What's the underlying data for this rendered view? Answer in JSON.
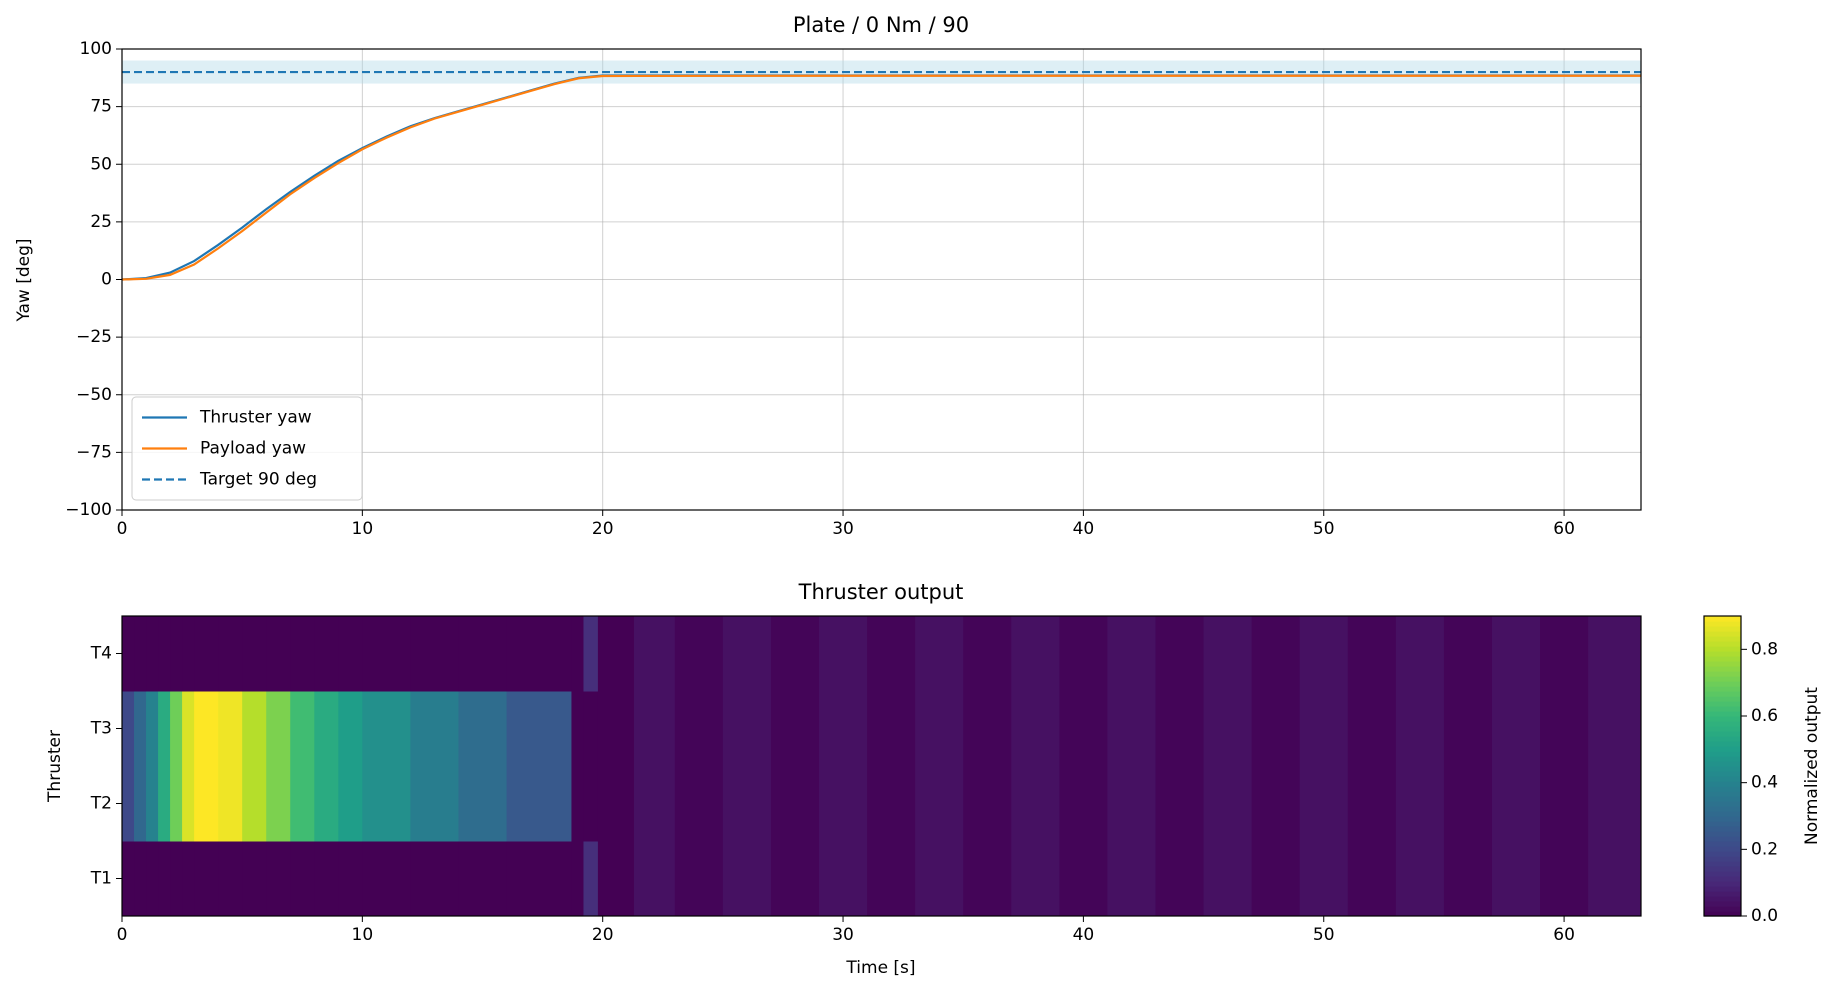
{
  "chart_data": [
    {
      "type": "line",
      "title": "Plate / 0 Nm / 90",
      "ylabel": "Yaw [deg]",
      "xlim": [
        0,
        63.2
      ],
      "ylim": [
        -100,
        100
      ],
      "xticks": [
        0,
        10,
        20,
        30,
        40,
        50,
        60
      ],
      "yticks": [
        {
          "value": -100,
          "label": "−100"
        },
        {
          "value": -75,
          "label": "−75"
        },
        {
          "value": -50,
          "label": "−50"
        },
        {
          "value": -25,
          "label": "−25"
        },
        0,
        25,
        50,
        75,
        100
      ],
      "grid": true,
      "legend": "lower left",
      "target_band": [
        85,
        95
      ],
      "band_color": "#add8e6",
      "x": [
        0,
        1,
        2,
        3,
        4,
        5,
        6,
        7,
        8,
        9,
        10,
        11,
        12,
        13,
        14,
        15,
        16,
        17,
        18,
        19,
        20,
        30,
        40,
        50,
        60,
        63.2
      ],
      "series": [
        {
          "name": "Thruster yaw",
          "color": "#1f77b4",
          "dash": false,
          "values": [
            0,
            0.6,
            3,
            8,
            15,
            22.5,
            30.5,
            38,
            45,
            51.5,
            57,
            62,
            66.5,
            70,
            73,
            76,
            79,
            82,
            85,
            87.5,
            88.5,
            88.5,
            88.5,
            88.5,
            88.5,
            88.5
          ]
        },
        {
          "name": "Payload yaw",
          "color": "#ff7f0e",
          "dash": false,
          "values": [
            0,
            0.3,
            2,
            6.5,
            13.5,
            21,
            29,
            37,
            44,
            50.5,
            56.5,
            61.5,
            66,
            69.8,
            72.8,
            75.8,
            78.8,
            81.8,
            84.8,
            87.3,
            88.3,
            88.4,
            88.4,
            88.4,
            88.4,
            88.4
          ]
        },
        {
          "name": "Target 90 deg",
          "color": "#1f77b4",
          "dash": true,
          "values": [
            90,
            90,
            90,
            90,
            90,
            90,
            90,
            90,
            90,
            90,
            90,
            90,
            90,
            90,
            90,
            90,
            90,
            90,
            90,
            90,
            90,
            90,
            90,
            90,
            90,
            90
          ]
        }
      ]
    },
    {
      "type": "heatmap",
      "title": "Thruster output",
      "xlabel": "Time [s]",
      "ylabel": "Thruster",
      "colormap": "viridis",
      "clim": [
        0,
        0.9
      ],
      "colorbar_label": "Normalized output",
      "colorbar_ticks": [
        {
          "value": 0,
          "label": "0.0"
        },
        {
          "value": 0.2,
          "label": "0.2"
        },
        {
          "value": 0.4,
          "label": "0.4"
        },
        {
          "value": 0.6,
          "label": "0.6"
        },
        {
          "value": 0.8,
          "label": "0.8"
        }
      ],
      "xlim": [
        0,
        63.2
      ],
      "xticks": [
        0,
        10,
        20,
        30,
        40,
        50,
        60
      ],
      "categories": [
        "T1",
        "T2",
        "T3",
        "T4"
      ],
      "bins": [
        0,
        0.5,
        1,
        1.5,
        2,
        2.5,
        3,
        4,
        5,
        6,
        7,
        8,
        9,
        10,
        12,
        14,
        16,
        18.7,
        19.2,
        19.8,
        21.3,
        23,
        25,
        27,
        29,
        31,
        33,
        35,
        37,
        39,
        41,
        43,
        45,
        47,
        49,
        51,
        53,
        55,
        57,
        59,
        61,
        63.2
      ],
      "values": [
        [
          0,
          0,
          0,
          0,
          0,
          0,
          0,
          0,
          0,
          0,
          0,
          0,
          0,
          0,
          0,
          0,
          0,
          0,
          0.12,
          0,
          0.04,
          0.01,
          0.04,
          0.01,
          0.04,
          0.01,
          0.04,
          0.01,
          0.04,
          0.01,
          0.04,
          0.01,
          0.04,
          0.01,
          0.04,
          0.01,
          0.04,
          0.01,
          0.04,
          0.01,
          0.04
        ],
        [
          0.2,
          0.3,
          0.4,
          0.55,
          0.7,
          0.85,
          0.9,
          0.88,
          0.8,
          0.72,
          0.62,
          0.55,
          0.5,
          0.45,
          0.38,
          0.32,
          0.25,
          0,
          0,
          0,
          0.04,
          0.01,
          0.04,
          0.01,
          0.04,
          0.01,
          0.04,
          0.01,
          0.04,
          0.01,
          0.04,
          0.01,
          0.04,
          0.01,
          0.04,
          0.01,
          0.04,
          0.01,
          0.04,
          0.01,
          0.04
        ],
        [
          0.2,
          0.3,
          0.4,
          0.55,
          0.7,
          0.85,
          0.9,
          0.88,
          0.8,
          0.72,
          0.62,
          0.55,
          0.5,
          0.45,
          0.38,
          0.32,
          0.25,
          0,
          0,
          0,
          0.04,
          0.01,
          0.04,
          0.01,
          0.04,
          0.01,
          0.04,
          0.01,
          0.04,
          0.01,
          0.04,
          0.01,
          0.04,
          0.01,
          0.04,
          0.01,
          0.04,
          0.01,
          0.04,
          0.01,
          0.04
        ],
        [
          0,
          0,
          0,
          0,
          0,
          0,
          0,
          0,
          0,
          0,
          0,
          0,
          0,
          0,
          0,
          0,
          0,
          0,
          0.12,
          0,
          0.04,
          0.01,
          0.04,
          0.01,
          0.04,
          0.01,
          0.04,
          0.01,
          0.04,
          0.01,
          0.04,
          0.01,
          0.04,
          0.01,
          0.04,
          0.01,
          0.04,
          0.01,
          0.04,
          0.01,
          0.04
        ]
      ]
    }
  ]
}
